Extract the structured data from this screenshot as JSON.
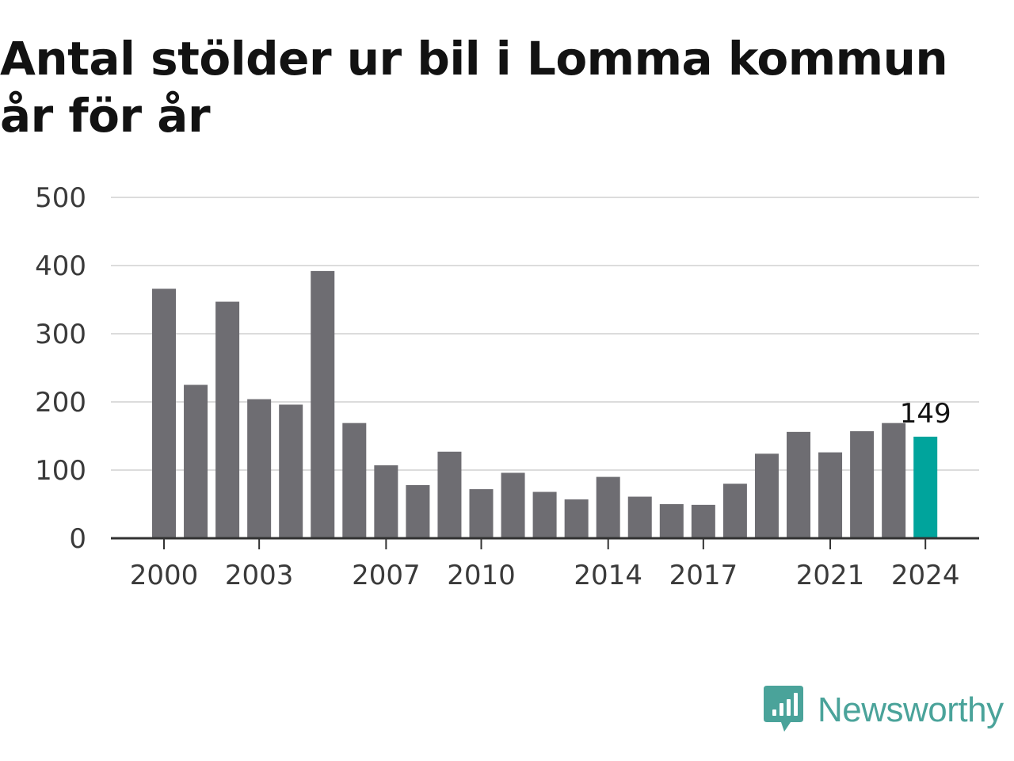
{
  "title": "Antal stölder ur bil i Lomma kommun år för år",
  "logo": {
    "text": "Newsworthy"
  },
  "colors": {
    "bar": "#6e6d72",
    "highlight": "#00a49c",
    "grid": "#dcdcdc",
    "axis": "#333333",
    "brand": "#4aa39a"
  },
  "chart_data": {
    "type": "bar",
    "x": [
      2000,
      2001,
      2002,
      2003,
      2004,
      2005,
      2006,
      2007,
      2008,
      2009,
      2010,
      2011,
      2012,
      2013,
      2014,
      2015,
      2016,
      2017,
      2018,
      2019,
      2020,
      2021,
      2022,
      2023,
      2024
    ],
    "values": [
      366,
      225,
      347,
      204,
      196,
      392,
      169,
      107,
      78,
      127,
      72,
      96,
      68,
      57,
      90,
      61,
      50,
      49,
      80,
      124,
      156,
      126,
      157,
      169,
      149
    ],
    "ylim": [
      0,
      500
    ],
    "yticks": [
      0,
      100,
      200,
      300,
      400,
      500
    ],
    "xticks": [
      2000,
      2003,
      2007,
      2010,
      2014,
      2017,
      2021,
      2024
    ],
    "highlight_index": 24,
    "data_labels": [
      {
        "index": 24,
        "text": "149"
      }
    ],
    "grid": true,
    "legend": "none"
  }
}
